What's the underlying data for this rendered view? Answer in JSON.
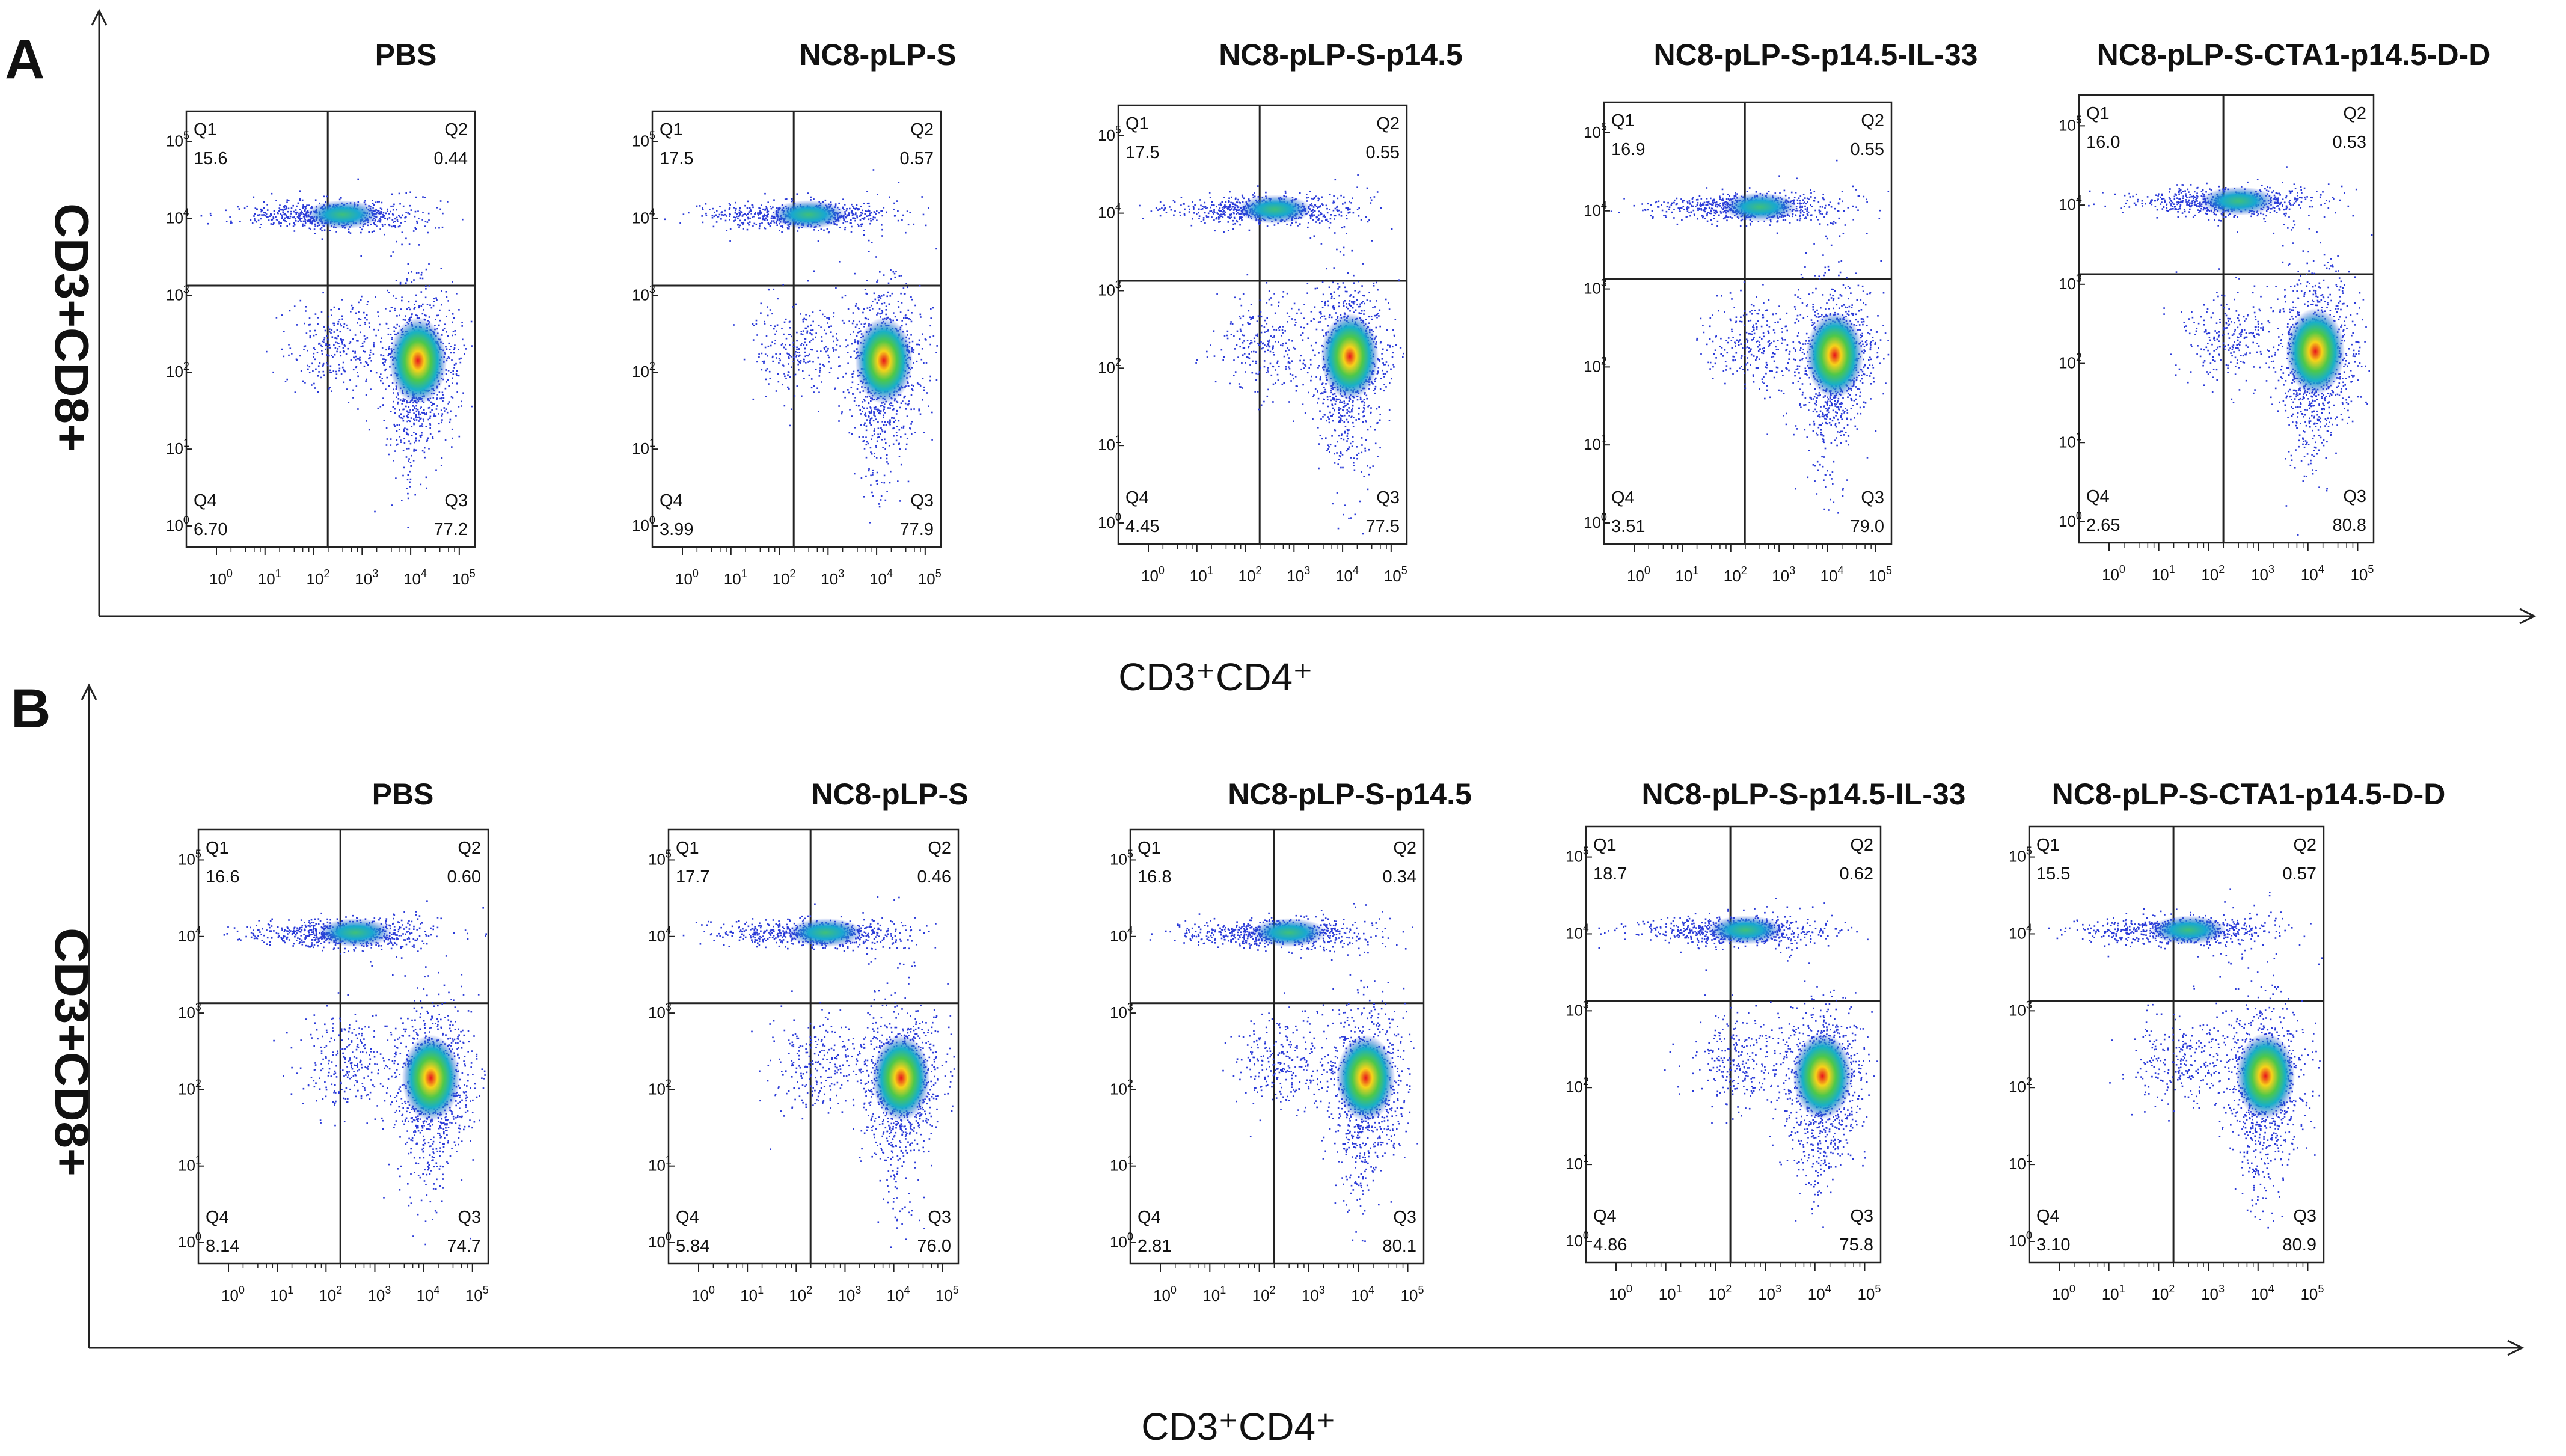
{
  "chart_data": [
    {
      "type": "scatter",
      "panel": "A",
      "ylabel": "CD3+CD8+",
      "xlabel": "CD3⁺CD4⁺",
      "tick_labels": [
        "10",
        "10",
        "10",
        "10",
        "10",
        "10"
      ],
      "tick_exponents": [
        "0",
        "1",
        "2",
        "3",
        "4",
        "5"
      ],
      "quadrant_names": [
        "Q1",
        "Q2",
        "Q3",
        "Q4"
      ],
      "plots": [
        {
          "title": "PBS",
          "q1": "15.6",
          "q2": "0.44",
          "q3": "77.2",
          "q4": "6.70"
        },
        {
          "title": "NC8-pLP-S",
          "q1": "17.5",
          "q2": "0.57",
          "q3": "77.9",
          "q4": "3.99"
        },
        {
          "title": "NC8-pLP-S-p14.5",
          "q1": "17.5",
          "q2": "0.55",
          "q3": "77.5",
          "q4": "4.45"
        },
        {
          "title": "NC8-pLP-S-p14.5-IL-33",
          "q1": "16.9",
          "q2": "0.55",
          "q3": "79.0",
          "q4": "3.51"
        },
        {
          "title": "NC8-pLP-S-CTA1-p14.5-D-D",
          "q1": "16.0",
          "q2": "0.53",
          "q3": "80.8",
          "q4": "2.65"
        }
      ]
    },
    {
      "type": "scatter",
      "panel": "B",
      "ylabel": "CD3+CD8+",
      "xlabel": "CD3⁺CD4⁺",
      "tick_labels": [
        "10",
        "10",
        "10",
        "10",
        "10",
        "10"
      ],
      "tick_exponents": [
        "0",
        "1",
        "2",
        "3",
        "4",
        "5"
      ],
      "quadrant_names": [
        "Q1",
        "Q2",
        "Q3",
        "Q4"
      ],
      "plots": [
        {
          "title": "PBS",
          "q1": "16.6",
          "q2": "0.60",
          "q3": "74.7",
          "q4": "8.14"
        },
        {
          "title": "NC8-pLP-S",
          "q1": "17.7",
          "q2": "0.46",
          "q3": "76.0",
          "q4": "5.84"
        },
        {
          "title": "NC8-pLP-S-p14.5",
          "q1": "16.8",
          "q2": "0.34",
          "q3": "80.1",
          "q4": "2.81"
        },
        {
          "title": "NC8-pLP-S-p14.5-IL-33",
          "q1": "18.7",
          "q2": "0.62",
          "q3": "75.8",
          "q4": "4.86"
        },
        {
          "title": "NC8-pLP-S-CTA1-p14.5-D-D",
          "q1": "15.5",
          "q2": "0.57",
          "q3": "80.9",
          "q4": "3.10"
        }
      ]
    }
  ]
}
